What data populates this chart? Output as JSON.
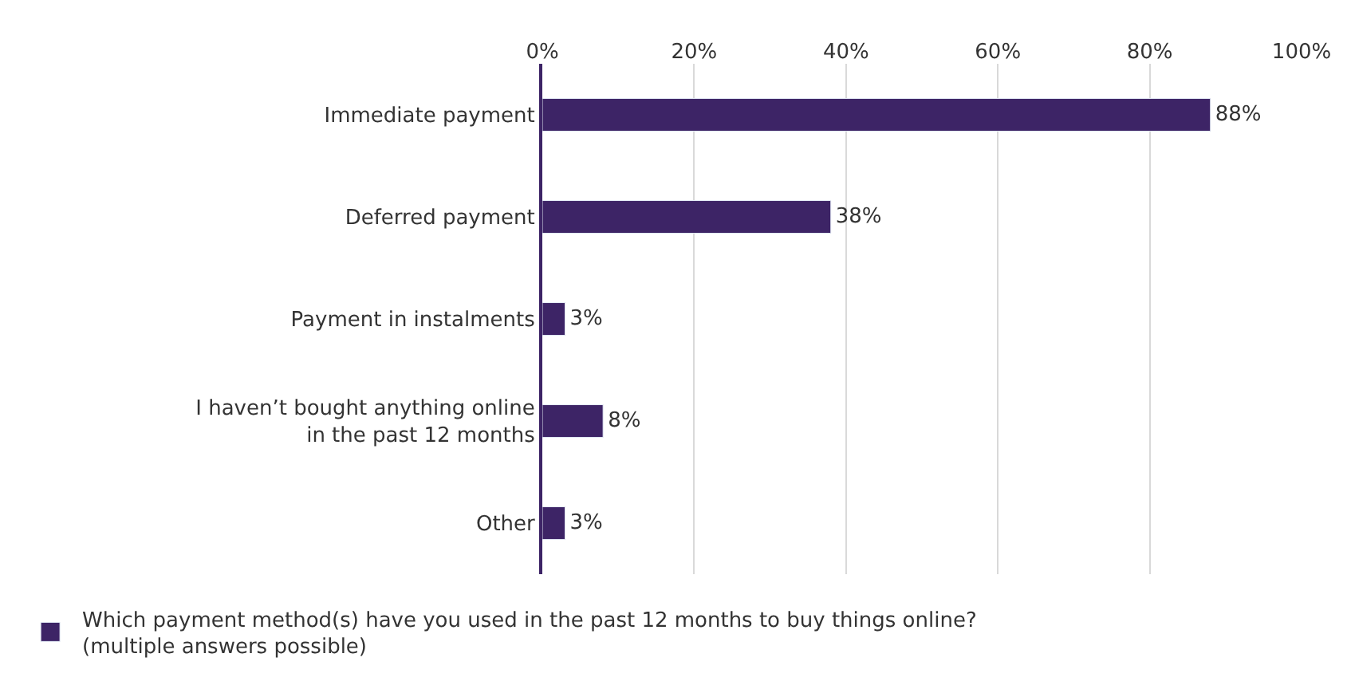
{
  "chart_data": {
    "type": "bar",
    "orientation": "horizontal",
    "categories": [
      "Immediate payment",
      "Deferred payment",
      "Payment in instalments",
      "I haven’t bought anything online\nin the past 12 months",
      "Other"
    ],
    "series": [
      {
        "name": "Which payment method(s) have you used in the past 12 months to buy things online?\n(multiple answers possible)",
        "color": "#3d2466",
        "values": [
          88,
          38,
          3,
          8,
          3
        ],
        "value_labels": [
          "88%",
          "38%",
          "3%",
          "8%",
          "3%"
        ]
      }
    ],
    "xlim": [
      0,
      100
    ],
    "xticks": [
      {
        "value": 0,
        "label": "0%"
      },
      {
        "value": 20,
        "label": "20%"
      },
      {
        "value": 40,
        "label": "40%"
      },
      {
        "value": 60,
        "label": "60%"
      },
      {
        "value": 80,
        "label": "80%"
      },
      {
        "value": 100,
        "label": "100%"
      }
    ],
    "grid": "x",
    "legend": "bottom"
  }
}
